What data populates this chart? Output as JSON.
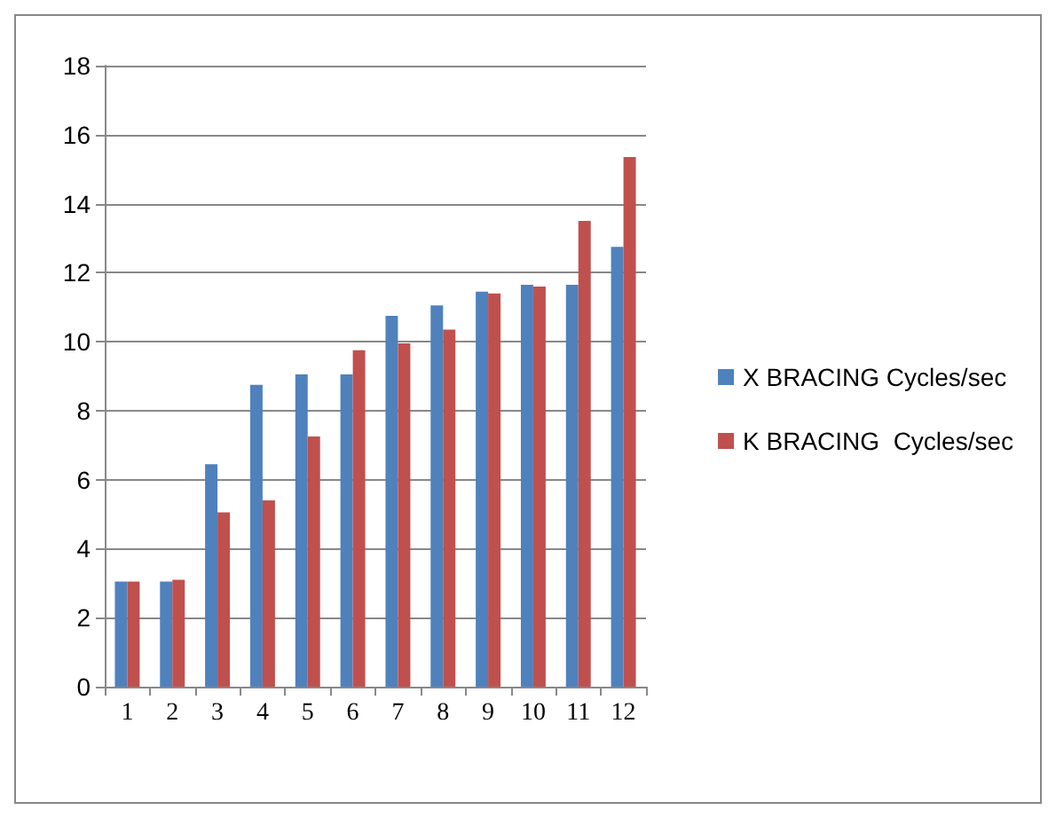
{
  "chart_data": {
    "type": "bar",
    "categories": [
      "1",
      "2",
      "3",
      "4",
      "5",
      "6",
      "7",
      "8",
      "9",
      "10",
      "11",
      "12"
    ],
    "series": [
      {
        "name": "X BRACING Cycles/sec",
        "color": "#4f81bd",
        "values": [
          3.05,
          3.05,
          6.45,
          8.75,
          9.05,
          9.05,
          10.75,
          11.05,
          11.45,
          11.65,
          11.65,
          12.75
        ]
      },
      {
        "name": "K BRACING  Cycles/sec",
        "color": "#c0504d",
        "values": [
          3.05,
          3.1,
          5.05,
          5.4,
          7.25,
          9.75,
          9.95,
          10.35,
          11.4,
          11.6,
          13.5,
          15.35
        ]
      }
    ],
    "ylim": [
      0,
      18
    ],
    "yticks": [
      0,
      2,
      4,
      6,
      8,
      10,
      12,
      14,
      16,
      18
    ],
    "grid": "y",
    "legend": "right"
  }
}
